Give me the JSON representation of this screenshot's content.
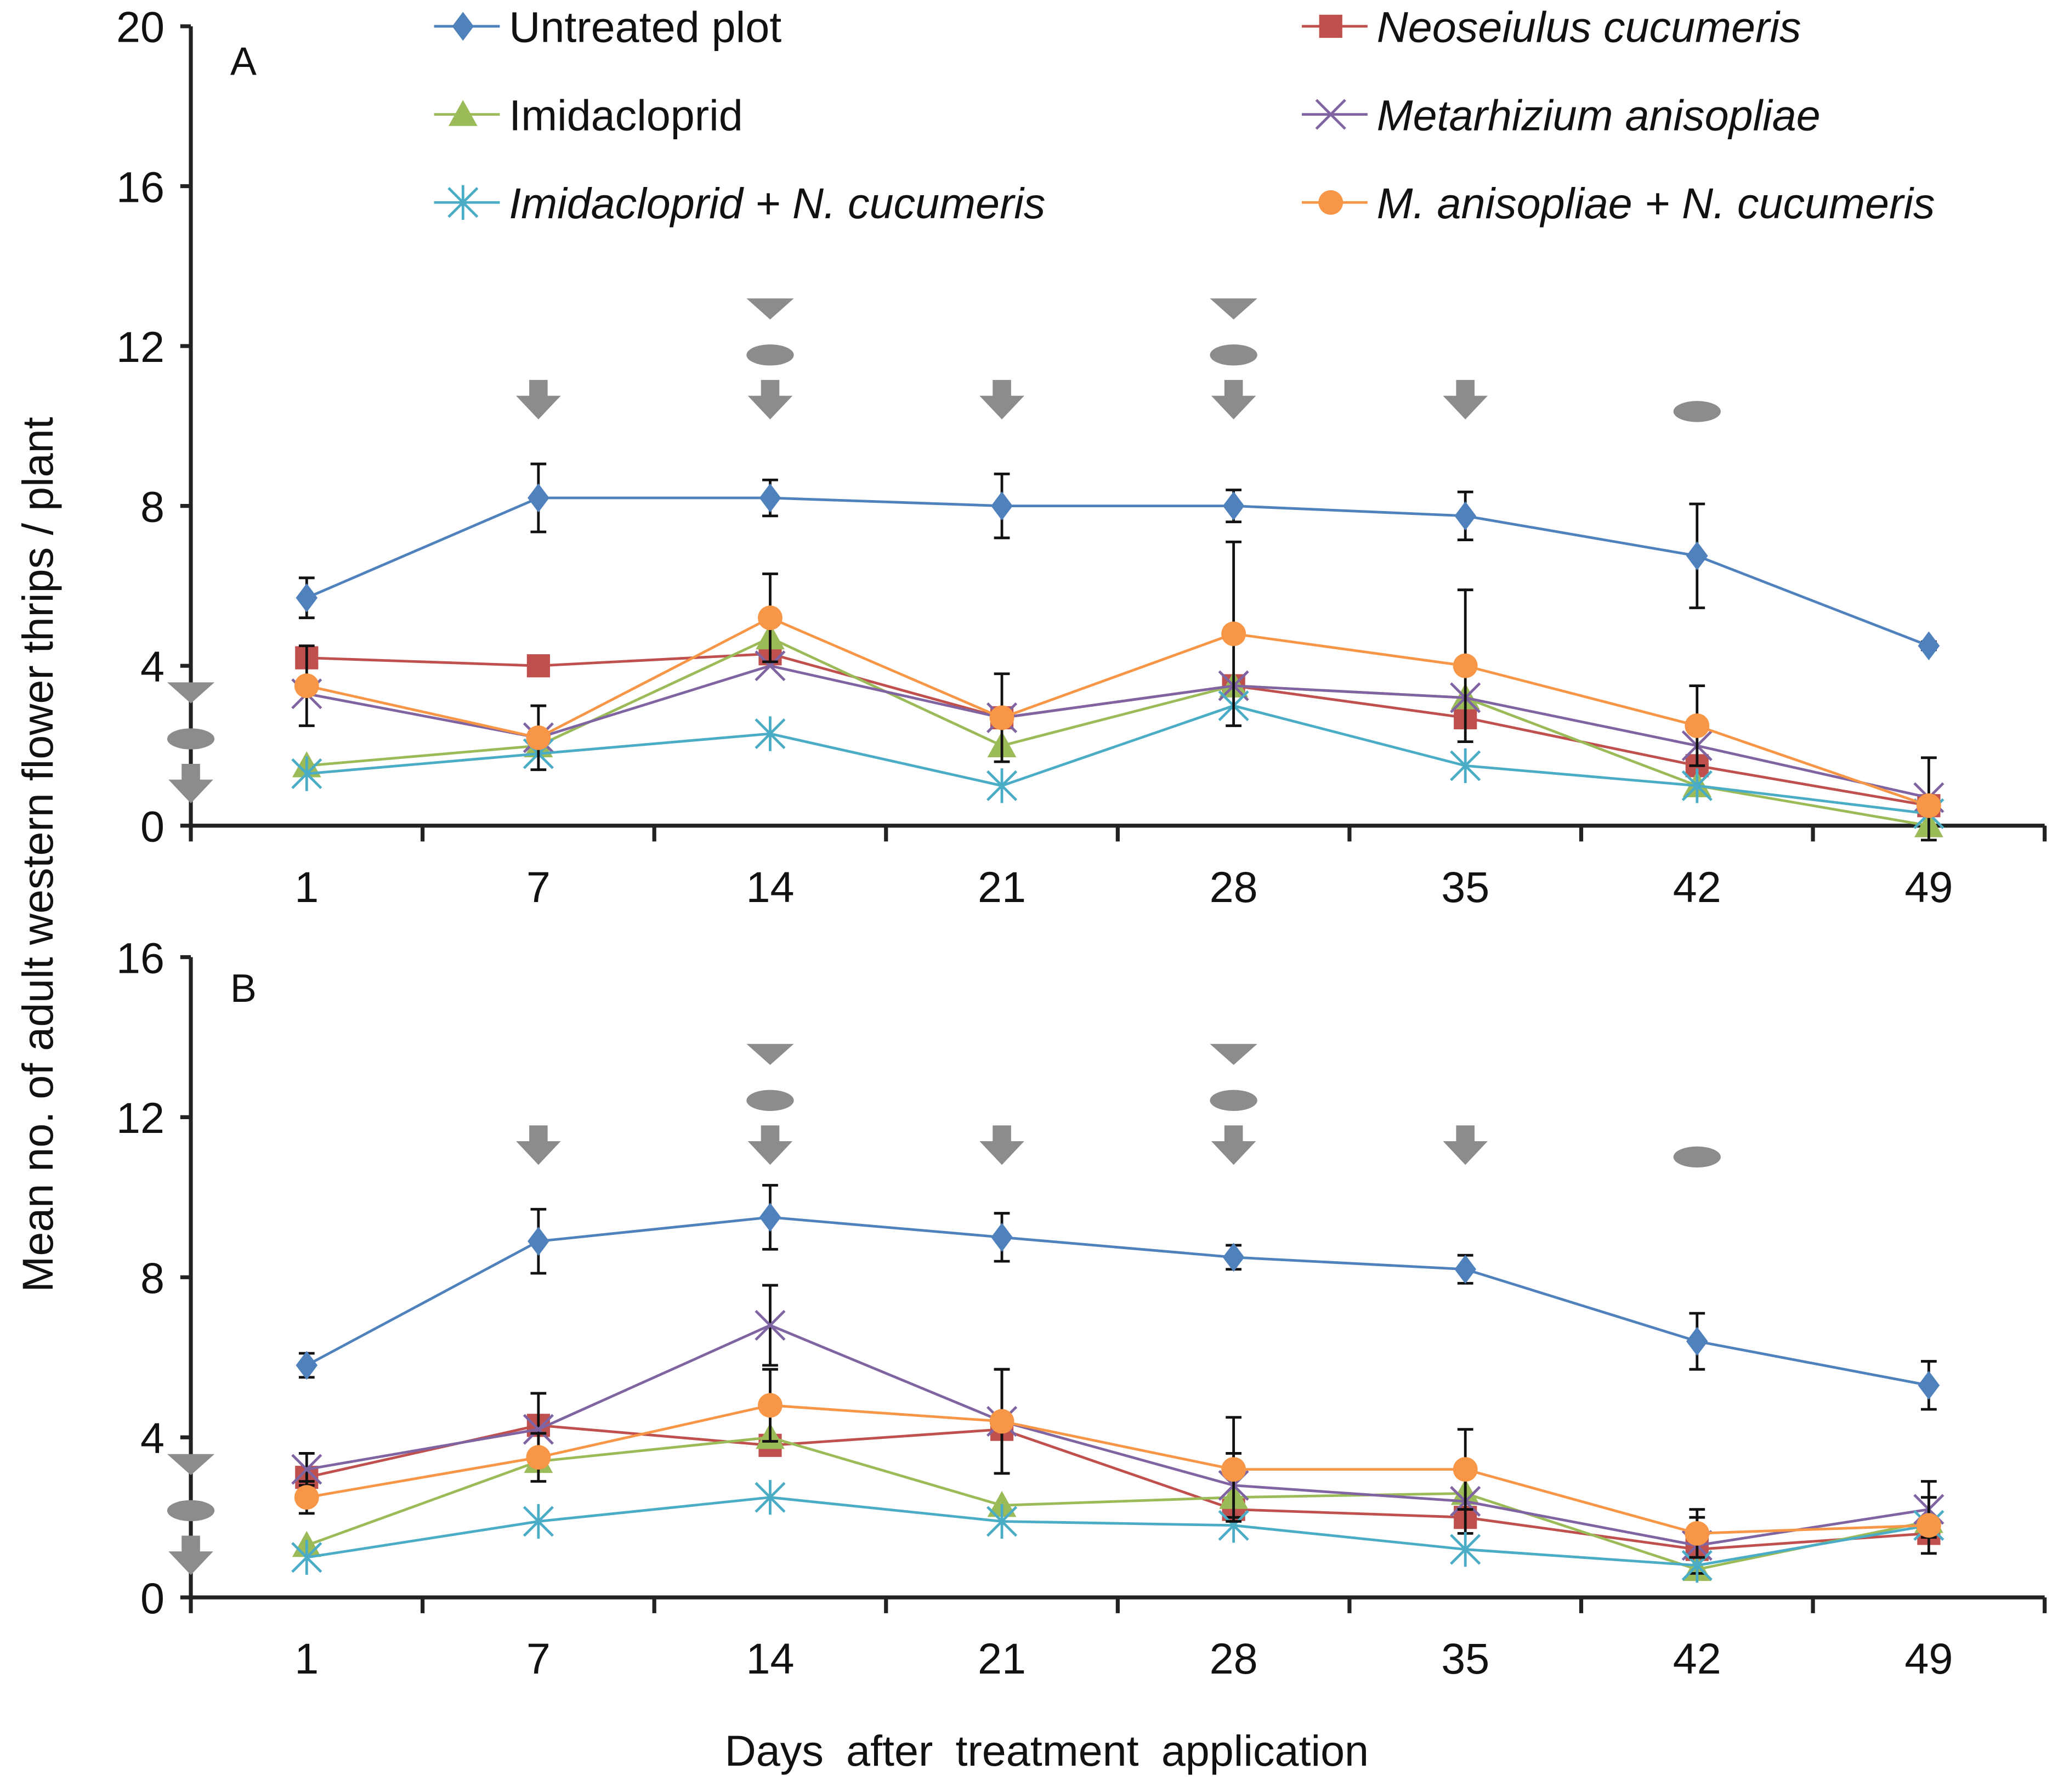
{
  "chart_data": {
    "type": "line",
    "ylabel": "Mean no. of adult western flower thrips / plant",
    "xlabel": "Days after treatment application",
    "categories": [
      "1",
      "7",
      "14",
      "21",
      "28",
      "35",
      "42",
      "49"
    ],
    "legend": [
      {
        "name": "Untreated plot",
        "italic": false,
        "marker": "diamond",
        "color": "#4f81bd"
      },
      {
        "name": "Neoseiulus cucumeris",
        "italic": true,
        "marker": "square",
        "color": "#c0504d"
      },
      {
        "name": "Imidacloprid",
        "italic": false,
        "marker": "triangle",
        "color": "#9bbb59"
      },
      {
        "name": "Metarhizium anisopliae",
        "italic": true,
        "marker": "x",
        "color": "#8064a2"
      },
      {
        "name": "Imidacloprid + N. cucumeris",
        "italic": true,
        "marker": "asterisk",
        "color": "#4bacc6"
      },
      {
        "name": "M. anisopliae + N. cucumeris",
        "italic": true,
        "marker": "circle",
        "color": "#f79646"
      }
    ],
    "legend_placement": "top",
    "panels": [
      {
        "label": "A",
        "ylim": [
          0,
          20
        ],
        "yticks": [
          "0",
          "4",
          "8",
          "12",
          "16",
          "20"
        ],
        "series": [
          {
            "name": "Untreated plot",
            "values": [
              5.7,
              8.2,
              8.2,
              8.0,
              8.0,
              7.75,
              6.75,
              4.5
            ],
            "errors": [
              0.5,
              0.85,
              0.45,
              0.8,
              0.4,
              0.6,
              1.3,
              0.1
            ]
          },
          {
            "name": "Neoseiulus cucumeris",
            "values": [
              4.2,
              4.0,
              4.3,
              2.7,
              3.5,
              2.7,
              1.5,
              0.5
            ]
          },
          {
            "name": "Imidacloprid",
            "values": [
              1.5,
              2.0,
              4.7,
              2.0,
              3.5,
              3.2,
              1.0,
              0.0
            ]
          },
          {
            "name": "Metarhizium anisopliae",
            "values": [
              3.3,
              2.2,
              4.0,
              2.7,
              3.5,
              3.2,
              2.0,
              0.7
            ]
          },
          {
            "name": "Imidacloprid + N. cucumeris",
            "values": [
              1.3,
              1.8,
              2.3,
              1.0,
              3.0,
              1.5,
              1.0,
              0.3
            ]
          },
          {
            "name": "M. anisopliae + N. cucumeris",
            "values": [
              3.5,
              2.2,
              5.2,
              2.7,
              4.8,
              4.0,
              2.5,
              0.5
            ],
            "errors": [
              1.0,
              0.8,
              1.1,
              1.1,
              2.3,
              1.9,
              1.0,
              1.2
            ]
          }
        ],
        "application_markers": [
          {
            "at": "axis",
            "symbols": [
              "triangle",
              "ellipse",
              "arrow"
            ]
          },
          {
            "at": "7",
            "symbols": [
              "arrow"
            ]
          },
          {
            "at": "14",
            "symbols": [
              "triangle",
              "ellipse",
              "arrow"
            ]
          },
          {
            "at": "21",
            "symbols": [
              "arrow"
            ]
          },
          {
            "at": "28",
            "symbols": [
              "triangle",
              "ellipse",
              "arrow"
            ]
          },
          {
            "at": "35",
            "symbols": [
              "arrow"
            ]
          },
          {
            "at": "42",
            "symbols": [
              "ellipse"
            ]
          }
        ]
      },
      {
        "label": "B",
        "ylim": [
          0,
          16
        ],
        "yticks": [
          "0",
          "4",
          "8",
          "12",
          "16"
        ],
        "series": [
          {
            "name": "Untreated plot",
            "values": [
              5.8,
              8.9,
              9.5,
              9.0,
              8.5,
              8.2,
              6.4,
              5.3
            ],
            "errors": [
              0.3,
              0.8,
              0.8,
              0.6,
              0.3,
              0.35,
              0.7,
              0.6
            ]
          },
          {
            "name": "Neoseiulus cucumeris",
            "values": [
              3.0,
              4.3,
              3.8,
              4.2,
              2.2,
              2.0,
              1.2,
              1.6
            ]
          },
          {
            "name": "Imidacloprid",
            "values": [
              1.3,
              3.4,
              4.0,
              2.3,
              2.5,
              2.6,
              0.7,
              1.9
            ]
          },
          {
            "name": "Metarhizium anisopliae",
            "values": [
              3.2,
              4.2,
              6.8,
              4.4,
              2.8,
              2.4,
              1.3,
              2.2
            ],
            "errors": [
              0.4,
              0.9,
              1.0,
              1.3,
              0.8,
              0.8,
              0.7,
              0.7
            ]
          },
          {
            "name": "Imidacloprid + N. cucumeris",
            "values": [
              1.0,
              1.9,
              2.5,
              1.9,
              1.8,
              1.2,
              0.8,
              1.8
            ]
          },
          {
            "name": "M. anisopliae + N. cucumeris",
            "values": [
              2.5,
              3.5,
              4.8,
              4.4,
              3.2,
              3.2,
              1.6,
              1.8
            ],
            "errors": [
              0.4,
              0.6,
              0.9,
              1.3,
              1.3,
              1.0,
              0.6,
              0.7
            ]
          }
        ],
        "application_markers": [
          {
            "at": "axis",
            "symbols": [
              "triangle",
              "ellipse",
              "arrow"
            ]
          },
          {
            "at": "7",
            "symbols": [
              "arrow"
            ]
          },
          {
            "at": "14",
            "symbols": [
              "triangle",
              "ellipse",
              "arrow"
            ]
          },
          {
            "at": "21",
            "symbols": [
              "arrow"
            ]
          },
          {
            "at": "28",
            "symbols": [
              "triangle",
              "ellipse",
              "arrow"
            ]
          },
          {
            "at": "35",
            "symbols": [
              "arrow"
            ]
          },
          {
            "at": "42",
            "symbols": [
              "ellipse"
            ]
          }
        ]
      }
    ]
  }
}
